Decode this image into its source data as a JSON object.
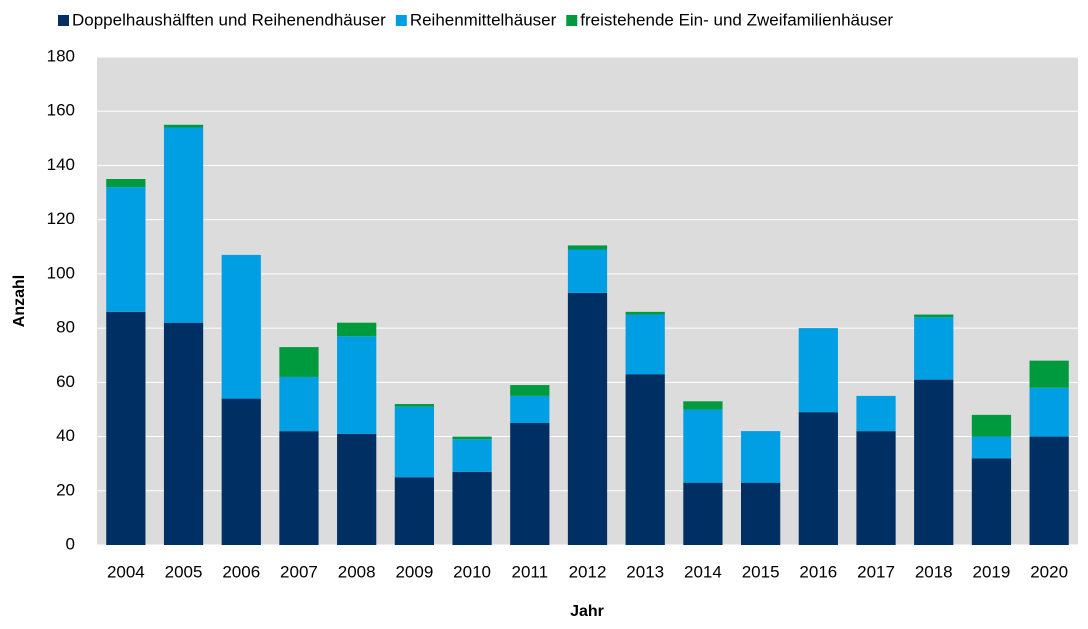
{
  "chart_data": {
    "type": "stacked-bar",
    "x_label": "Jahr",
    "y_label": "Anzahl",
    "categories": [
      "2004",
      "2005",
      "2006",
      "2007",
      "2008",
      "2009",
      "2010",
      "2011",
      "2012",
      "2013",
      "2014",
      "2015",
      "2016",
      "2017",
      "2018",
      "2019",
      "2020"
    ],
    "series": [
      {
        "name": "Doppelhaushälften und Reihenendhäuser",
        "color": "#003063",
        "values": [
          86,
          82,
          54,
          42,
          41,
          25,
          27,
          45,
          93,
          63,
          23,
          23,
          49,
          42,
          61,
          32,
          40
        ]
      },
      {
        "name": "Reihenmittelhäuser",
        "color": "#009fe3",
        "values": [
          46,
          72,
          53,
          20,
          36,
          26,
          12,
          10,
          16,
          22,
          27,
          19,
          31,
          13,
          23,
          8,
          18
        ]
      },
      {
        "name": "freistehende Ein- und Zweifamilienhäuser",
        "color": "#009a3e",
        "values": [
          3,
          1,
          0,
          11,
          5,
          1,
          1,
          4,
          1.5,
          1,
          3,
          0,
          0,
          0,
          1,
          8,
          10
        ]
      }
    ],
    "ylim": [
      0,
      180
    ],
    "yticks": [
      0,
      20,
      40,
      60,
      80,
      100,
      120,
      140,
      160,
      180
    ],
    "grid": true
  }
}
